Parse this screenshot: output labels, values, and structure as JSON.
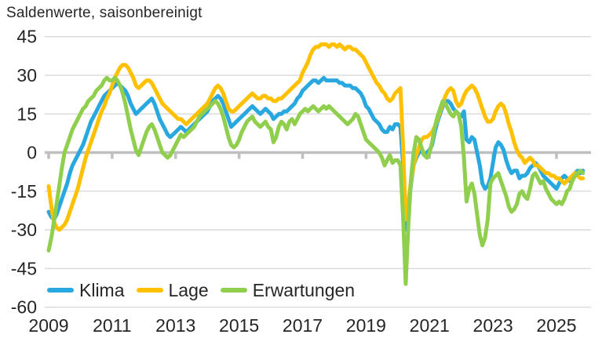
{
  "title": "Saldenwerte, saisonbereinigt",
  "colors": {
    "background": "#ffffff",
    "text": "#262626",
    "grid_line": "#d9d9d9",
    "zero_line": "#bfbfbf",
    "klima": "#29a8e0",
    "lage": "#ffc000",
    "erwartungen": "#90ce4e"
  },
  "legend": {
    "items": [
      "Klima",
      "Lage",
      "Erwartungen"
    ]
  },
  "chart_data": {
    "type": "line",
    "title": "Saldenwerte, saisonbereinigt",
    "x_unit": "month",
    "x_start": "2009-01",
    "x_end": "2025-11",
    "x_ticks": [
      0,
      24,
      48,
      72,
      96,
      120,
      144,
      168,
      192
    ],
    "x_tick_labels": [
      "2009",
      "2011",
      "2013",
      "2015",
      "2017",
      "2019",
      "2021",
      "2023",
      "2025"
    ],
    "y_ticks": [
      45,
      30,
      15,
      0,
      -15,
      -30,
      -45,
      -60
    ],
    "ylim": [
      -60,
      45
    ],
    "grid": "horizontal",
    "legend_position": "bottom-left-inside",
    "series": [
      {
        "name": "Klima",
        "color": "#29a8e0",
        "values": [
          -23,
          -25,
          -26,
          -24,
          -21,
          -18,
          -15,
          -12,
          -8,
          -5,
          -3,
          -1,
          1,
          3,
          6,
          9,
          12,
          14,
          16,
          18,
          20,
          22,
          23,
          24,
          25,
          26,
          27,
          26,
          25,
          24,
          22,
          19,
          17,
          15,
          16,
          17,
          18,
          19,
          20,
          21,
          19,
          16,
          13,
          11,
          9,
          7,
          6,
          7,
          8,
          9,
          10,
          9,
          8,
          9,
          10,
          11,
          12,
          13,
          14,
          15,
          16,
          18,
          20,
          21,
          22,
          21,
          19,
          16,
          13,
          10,
          11,
          12,
          13,
          14,
          15,
          16,
          17,
          18,
          17,
          16,
          15,
          16,
          17,
          16,
          15,
          13,
          14,
          15,
          15,
          16,
          16,
          17,
          18,
          19,
          21,
          22,
          24,
          25,
          26,
          27,
          28,
          28,
          27,
          28,
          29,
          28,
          28,
          28,
          28,
          28,
          27,
          27,
          26,
          26,
          26,
          25,
          25,
          24,
          23,
          21,
          18,
          17,
          15,
          13,
          12,
          11,
          9,
          8,
          8,
          10,
          9,
          11,
          11,
          10,
          -5,
          -30,
          -22,
          -12,
          -5,
          -2,
          0,
          1,
          -1,
          0,
          1,
          3,
          8,
          12,
          15,
          18,
          20,
          20,
          19,
          17,
          16,
          15,
          14,
          16,
          5,
          4,
          6,
          5,
          0,
          -5,
          -12,
          -14,
          -13,
          -10,
          -4,
          2,
          4,
          3,
          1,
          -3,
          -6,
          -8,
          -7,
          -7,
          -10,
          -9,
          -9,
          -8,
          -6,
          -5,
          -4,
          -5,
          -7,
          -9,
          -10,
          -11,
          -12,
          -13,
          -14,
          -12,
          -10,
          -9,
          -10,
          -11,
          -9,
          -8,
          -7,
          -8,
          -7
        ]
      },
      {
        "name": "Lage",
        "color": "#ffc000",
        "values": [
          -13,
          -21,
          -27,
          -29,
          -30,
          -29,
          -28,
          -26,
          -23,
          -20,
          -17,
          -14,
          -10,
          -6,
          -2,
          1,
          4,
          7,
          10,
          13,
          16,
          18,
          21,
          23,
          26,
          29,
          31,
          33,
          34,
          34,
          33,
          31,
          29,
          26,
          25,
          26,
          27,
          28,
          28,
          27,
          25,
          23,
          21,
          19,
          18,
          17,
          16,
          15,
          14,
          13,
          13,
          12,
          11,
          12,
          13,
          14,
          15,
          16,
          17,
          18,
          19,
          21,
          23,
          25,
          26,
          25,
          23,
          20,
          17,
          16,
          16,
          17,
          18,
          19,
          20,
          21,
          22,
          23,
          22,
          21,
          21,
          22,
          22,
          21,
          21,
          20,
          20,
          21,
          21,
          22,
          23,
          24,
          25,
          26,
          27,
          28,
          31,
          33,
          35,
          38,
          40,
          41,
          41,
          42,
          42,
          42,
          41,
          42,
          42,
          41,
          42,
          41,
          40,
          41,
          41,
          40,
          40,
          39,
          38,
          37,
          35,
          33,
          31,
          29,
          27,
          26,
          24,
          23,
          21,
          20,
          21,
          23,
          24,
          25,
          2,
          -26,
          -19,
          -11,
          -5,
          -1,
          2,
          5,
          6,
          6,
          7,
          8,
          10,
          13,
          16,
          19,
          22,
          24,
          25,
          24,
          20,
          18,
          19,
          22,
          24,
          25,
          26,
          25,
          23,
          20,
          17,
          14,
          12,
          12,
          13,
          16,
          18,
          19,
          18,
          15,
          11,
          8,
          4,
          1,
          -1,
          -2,
          -4,
          -3,
          -2,
          -3,
          -5,
          -5,
          -6,
          -7,
          -8,
          -8,
          -9,
          -9,
          -10,
          -10,
          -11,
          -12,
          -11,
          -10,
          -9,
          -8,
          -9,
          -10,
          -10
        ]
      },
      {
        "name": "Erwartungen",
        "color": "#90ce4e",
        "values": [
          -38,
          -33,
          -27,
          -20,
          -13,
          -6,
          0,
          3,
          6,
          9,
          11,
          13,
          15,
          17,
          18,
          20,
          21,
          22,
          24,
          25,
          26,
          28,
          29,
          28,
          28,
          29,
          28,
          26,
          23,
          19,
          14,
          9,
          5,
          1,
          -1,
          2,
          5,
          8,
          10,
          11,
          9,
          6,
          3,
          0,
          -1,
          -2,
          -1,
          1,
          3,
          5,
          7,
          6,
          7,
          8,
          9,
          10,
          12,
          14,
          15,
          16,
          17,
          18,
          19,
          20,
          19,
          17,
          14,
          10,
          6,
          3,
          2,
          3,
          5,
          8,
          10,
          12,
          13,
          14,
          12,
          11,
          10,
          11,
          12,
          10,
          9,
          4,
          6,
          10,
          12,
          11,
          9,
          12,
          13,
          11,
          13,
          15,
          16,
          17,
          16,
          17,
          18,
          17,
          16,
          17,
          18,
          17,
          18,
          17,
          16,
          15,
          14,
          13,
          12,
          11,
          12,
          13,
          15,
          14,
          11,
          8,
          5,
          4,
          3,
          2,
          1,
          0,
          -2,
          -5,
          -3,
          -1,
          -4,
          -3,
          -3,
          -5,
          -25,
          -51,
          -28,
          -10,
          0,
          6,
          5,
          2,
          -1,
          -2,
          0,
          4,
          10,
          14,
          17,
          20,
          19,
          17,
          15,
          14,
          16,
          15,
          10,
          -2,
          -19,
          -14,
          -12,
          -16,
          -24,
          -32,
          -36,
          -33,
          -26,
          -12,
          -10,
          -9,
          -8,
          -11,
          -14,
          -17,
          -21,
          -23,
          -22,
          -20,
          -16,
          -15,
          -17,
          -18,
          -14,
          -9,
          -8,
          -10,
          -12,
          -11,
          -14,
          -16,
          -18,
          -19,
          -20,
          -19,
          -20,
          -18,
          -15,
          -14,
          -11,
          -9,
          -8,
          -7,
          -8
        ]
      }
    ]
  }
}
